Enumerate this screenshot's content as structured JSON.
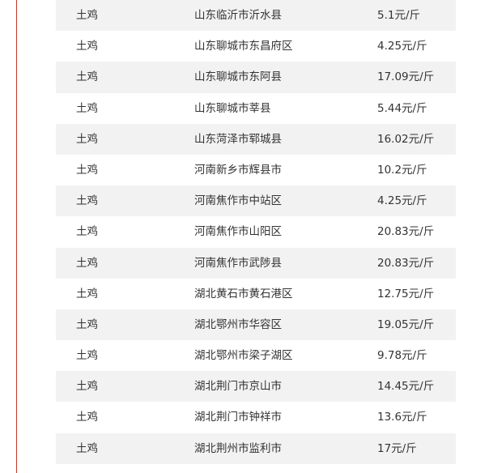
{
  "table": {
    "rows": [
      [
        "土鸡",
        "山东临沂市沂水县",
        "5.1元/斤"
      ],
      [
        "土鸡",
        "山东聊城市东昌府区",
        "4.25元/斤"
      ],
      [
        "土鸡",
        "山东聊城市东阿县",
        "17.09元/斤"
      ],
      [
        "土鸡",
        "山东聊城市莘县",
        "5.44元/斤"
      ],
      [
        "土鸡",
        "山东菏泽市郓城县",
        "16.02元/斤"
      ],
      [
        "土鸡",
        "河南新乡市辉县市",
        "10.2元/斤"
      ],
      [
        "土鸡",
        "河南焦作市中站区",
        "4.25元/斤"
      ],
      [
        "土鸡",
        "河南焦作市山阳区",
        "20.83元/斤"
      ],
      [
        "土鸡",
        "河南焦作市武陟县",
        "20.83元/斤"
      ],
      [
        "土鸡",
        "湖北黄石市黄石港区",
        "12.75元/斤"
      ],
      [
        "土鸡",
        "湖北鄂州市华容区",
        "19.05元/斤"
      ],
      [
        "土鸡",
        "湖北鄂州市梁子湖区",
        "9.78元/斤"
      ],
      [
        "土鸡",
        "湖北荆门市京山市",
        "14.45元/斤"
      ],
      [
        "土鸡",
        "湖北荆门市钟祥市",
        "13.6元/斤"
      ],
      [
        "土鸡",
        "湖北荆州市监利市",
        "17元/斤"
      ]
    ]
  }
}
